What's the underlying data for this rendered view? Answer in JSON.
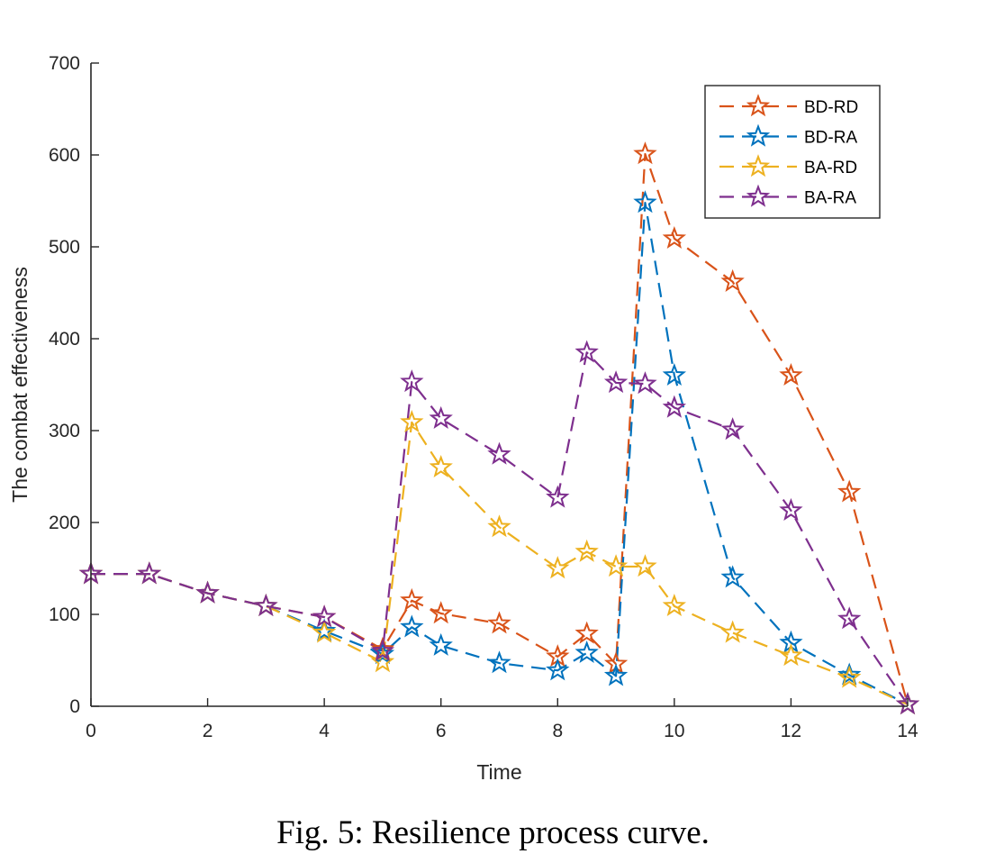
{
  "caption": "Fig. 5: Resilience process curve.",
  "chart_data": {
    "type": "line",
    "title": "",
    "xlabel": "Time",
    "ylabel": "The combat effectiveness",
    "xlim": [
      0,
      14
    ],
    "ylim": [
      0,
      700
    ],
    "xticks": [
      0,
      2,
      4,
      6,
      8,
      10,
      12,
      14
    ],
    "yticks": [
      0,
      100,
      200,
      300,
      400,
      500,
      600,
      700
    ],
    "grid": false,
    "legend_position": "top-right",
    "marker": "star",
    "line_style": "dashed",
    "series": [
      {
        "name": "BD-RD",
        "color": "#D95319",
        "x": [
          0,
          1,
          2,
          3,
          4,
          5,
          5.5,
          6,
          7,
          8,
          8.5,
          9,
          9.5,
          10,
          11,
          12,
          13,
          14
        ],
        "values": [
          144,
          144,
          123,
          109,
          97,
          62,
          115,
          101,
          90,
          54,
          79,
          46,
          601,
          509,
          462,
          360,
          233,
          2
        ]
      },
      {
        "name": "BD-RA",
        "color": "#0072BD",
        "x": [
          0,
          1,
          2,
          3,
          4,
          5,
          5.5,
          6,
          7,
          8,
          8.5,
          9,
          9.5,
          10,
          11,
          12,
          13,
          14
        ],
        "values": [
          144,
          144,
          123,
          109,
          82,
          57,
          86,
          66,
          47,
          39,
          58,
          33,
          548,
          360,
          140,
          69,
          34,
          2
        ]
      },
      {
        "name": "BA-RD",
        "color": "#EDB120",
        "x": [
          0,
          1,
          2,
          3,
          4,
          5,
          5.5,
          6,
          7,
          8,
          8.5,
          9,
          9.5,
          10,
          11,
          12,
          13,
          14
        ],
        "values": [
          144,
          144,
          123,
          109,
          80,
          48,
          309,
          260,
          195,
          150,
          168,
          152,
          152,
          109,
          80,
          55,
          31,
          2
        ]
      },
      {
        "name": "BA-RA",
        "color": "#7E2F8E",
        "x": [
          0,
          1,
          2,
          3,
          4,
          5,
          5.5,
          6,
          7,
          8,
          8.5,
          9,
          9.5,
          10,
          11,
          12,
          13,
          14
        ],
        "values": [
          144,
          144,
          123,
          109,
          97,
          60,
          353,
          313,
          274,
          227,
          385,
          352,
          351,
          325,
          301,
          213,
          95,
          2
        ]
      }
    ]
  }
}
